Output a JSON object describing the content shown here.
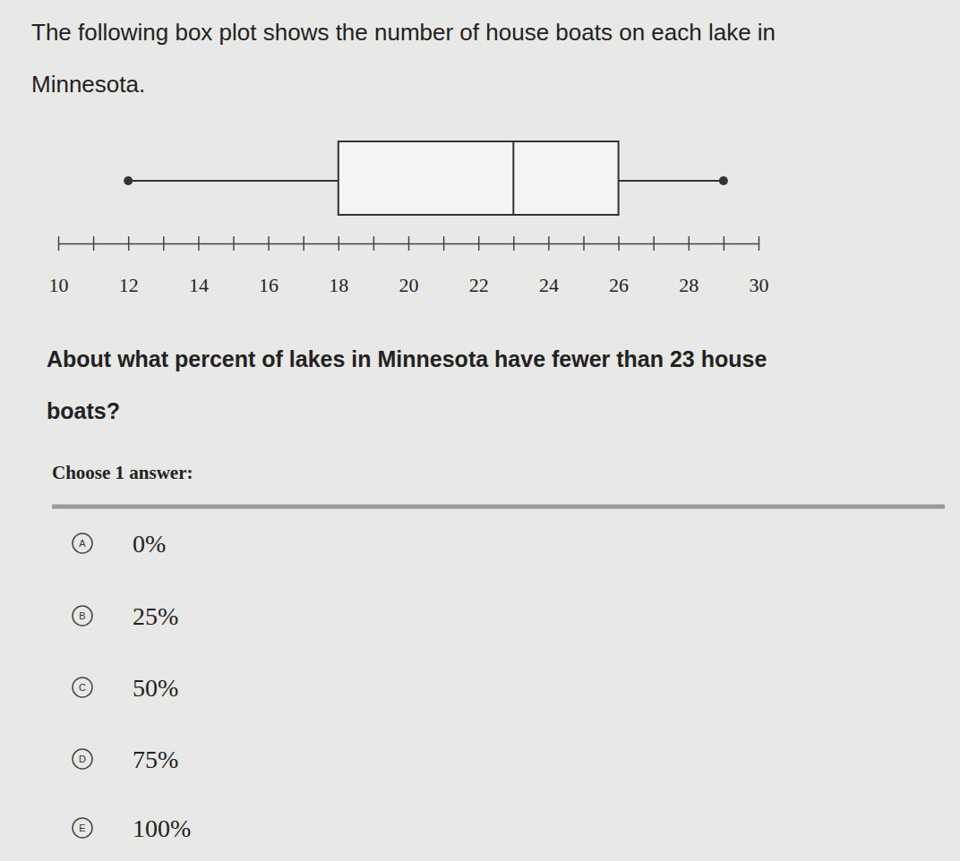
{
  "prompt": [
    "The following box plot shows the number of house boats on each lake in",
    "Minnesota."
  ],
  "question": [
    "About what percent of lakes in Minnesota have fewer than 23 house",
    "boats?"
  ],
  "choose": "Choose 1 answer:",
  "choices": [
    {
      "letter": "A",
      "text": "0%"
    },
    {
      "letter": "B",
      "text": "25%"
    },
    {
      "letter": "C",
      "text": "50%"
    },
    {
      "letter": "D",
      "text": "75%"
    },
    {
      "letter": "E",
      "text": "100%"
    }
  ],
  "chart_data": {
    "type": "box",
    "boxes": [
      {
        "min": 12,
        "q1": 18,
        "median": 23,
        "q3": 26,
        "max": 29
      }
    ],
    "xlim": [
      10,
      30
    ],
    "xticks": [
      10,
      {
        "value": 11,
        "label": null
      },
      12,
      {
        "value": 13,
        "label": null
      },
      14,
      {
        "value": 15,
        "label": null
      },
      16,
      {
        "value": 17,
        "label": null
      },
      18,
      {
        "value": 19,
        "label": null
      },
      20,
      {
        "value": 21,
        "label": null
      },
      22,
      {
        "value": 23,
        "label": null
      },
      24,
      {
        "value": 25,
        "label": null
      },
      26,
      {
        "value": 27,
        "label": null
      },
      28,
      {
        "value": 29,
        "label": null
      },
      30
    ]
  }
}
